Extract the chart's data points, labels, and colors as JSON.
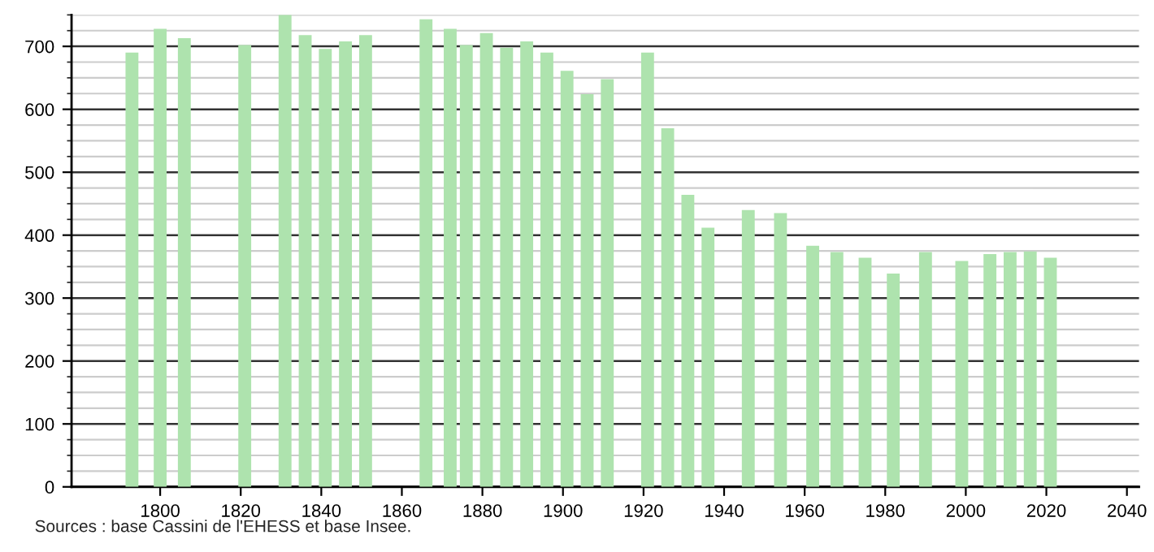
{
  "chart_data": {
    "type": "bar",
    "x": [
      1793,
      1800,
      1806,
      1821,
      1831,
      1836,
      1841,
      1846,
      1851,
      1866,
      1872,
      1876,
      1881,
      1886,
      1891,
      1896,
      1901,
      1906,
      1911,
      1921,
      1926,
      1931,
      1936,
      1946,
      1954,
      1962,
      1968,
      1975,
      1982,
      1990,
      1999,
      2006,
      2011,
      2016,
      2021
    ],
    "values": [
      690,
      728,
      713,
      702,
      750,
      718,
      696,
      708,
      718,
      743,
      728,
      702,
      721,
      698,
      708,
      690,
      661,
      624,
      648,
      690,
      570,
      464,
      412,
      440,
      435,
      383,
      373,
      364,
      339,
      373,
      359,
      370,
      373,
      374,
      364
    ],
    "color": "#aee3ae",
    "xlim": [
      1778,
      2043
    ],
    "xticks": [
      1800,
      1820,
      1840,
      1860,
      1880,
      1900,
      1920,
      1940,
      1960,
      1980,
      2000,
      2020,
      2040
    ],
    "ylim": [
      0,
      750
    ],
    "yticks": [
      0,
      100,
      200,
      300,
      400,
      500,
      600,
      700
    ],
    "grid": "y",
    "legend": false,
    "annotations": [
      "Sources : base Cassini de l'EHESS et base Insee."
    ]
  }
}
